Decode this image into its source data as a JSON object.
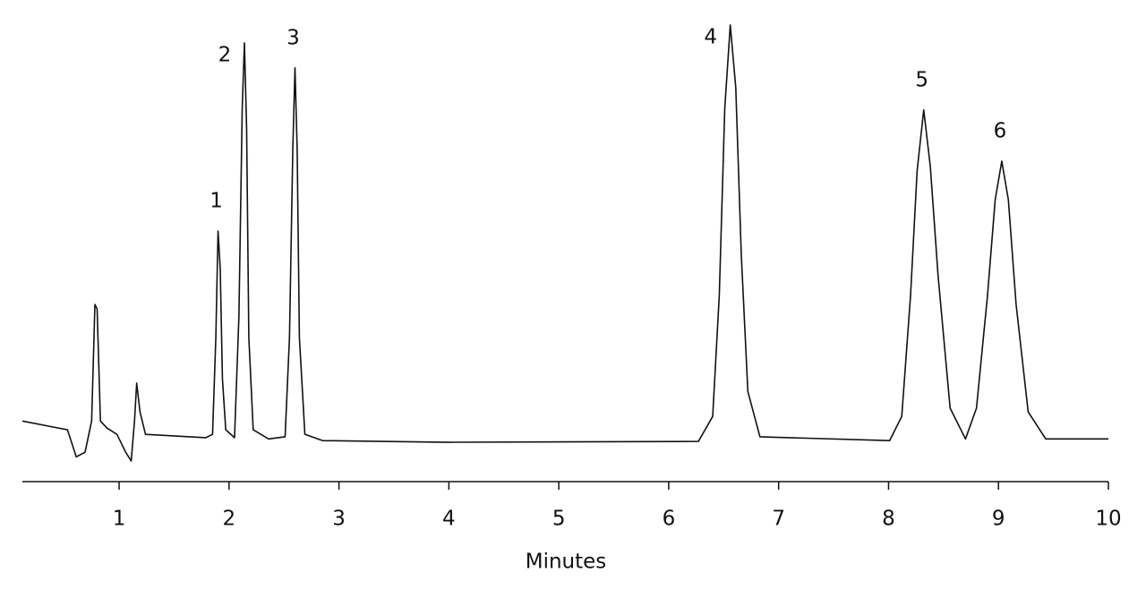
{
  "chart_data": {
    "type": "line",
    "x_label": "Minutes",
    "xlim": [
      0.12,
      10
    ],
    "xticks": [
      1,
      2,
      3,
      4,
      5,
      6,
      7,
      8,
      9,
      10
    ],
    "ylim": [
      -6,
      102
    ],
    "grid": false,
    "series": [
      {
        "color": "#111111",
        "x": [
          0.12,
          0.41,
          0.53,
          0.61,
          0.69,
          0.75,
          0.78,
          0.8,
          0.83,
          0.89,
          0.98,
          1.06,
          1.11,
          1.14,
          1.16,
          1.19,
          1.24,
          1.79,
          1.85,
          1.88,
          1.9,
          1.92,
          1.94,
          1.97,
          2.05,
          2.09,
          2.12,
          2.14,
          2.16,
          2.18,
          2.22,
          2.36,
          2.51,
          2.55,
          2.58,
          2.6,
          2.62,
          2.64,
          2.69,
          2.85,
          3.99,
          6.27,
          6.4,
          6.46,
          6.51,
          6.56,
          6.61,
          6.66,
          6.72,
          6.83,
          8.01,
          8.12,
          8.2,
          8.26,
          8.32,
          8.38,
          8.45,
          8.56,
          8.7,
          8.8,
          8.9,
          8.97,
          9.03,
          9.09,
          9.16,
          9.27,
          9.43,
          10.0
        ],
        "values": [
          4.9,
          3.4,
          2.8,
          -3.7,
          -2.6,
          4.9,
          32.9,
          31.8,
          4.9,
          3.2,
          1.7,
          -2.6,
          -4.7,
          4.9,
          14.0,
          7.1,
          1.7,
          0.9,
          1.7,
          25.0,
          50.5,
          41.5,
          15.0,
          2.8,
          0.9,
          30.0,
          80.0,
          95.7,
          75.0,
          25.0,
          2.8,
          0.6,
          1.1,
          25.0,
          70.0,
          89.7,
          70.0,
          25.0,
          1.7,
          0.2,
          -0.2,
          0.0,
          6.0,
          35.0,
          80.0,
          100.0,
          85.0,
          45.0,
          12.0,
          1.1,
          0.2,
          6.0,
          35.0,
          65.0,
          79.6,
          66.0,
          40.0,
          8.0,
          0.6,
          8.0,
          35.0,
          58.0,
          67.3,
          58.0,
          33.0,
          7.1,
          0.6,
          0.6
        ]
      }
    ],
    "peaks": [
      {
        "label": "1",
        "x": 1.9,
        "y": 50.5
      },
      {
        "label": "2",
        "x": 2.14,
        "y": 95.7
      },
      {
        "label": "3",
        "x": 2.6,
        "y": 89.7
      },
      {
        "label": "4",
        "x": 6.56,
        "y": 100.0
      },
      {
        "label": "5",
        "x": 8.32,
        "y": 79.6
      },
      {
        "label": "6",
        "x": 9.03,
        "y": 67.3
      }
    ]
  }
}
